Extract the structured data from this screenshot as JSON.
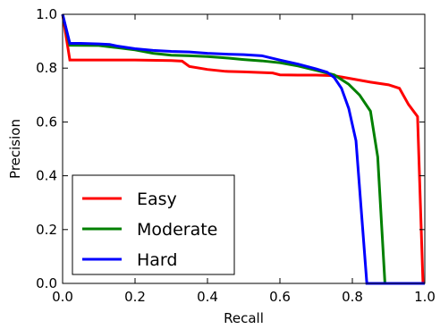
{
  "chart_data": {
    "type": "line",
    "title": "",
    "xlabel": "Recall",
    "ylabel": "Precision",
    "xlim": [
      0.0,
      1.0
    ],
    "ylim": [
      0.0,
      1.0
    ],
    "x_ticks": [
      "0.0",
      "0.2",
      "0.4",
      "0.6",
      "0.8",
      "1.0"
    ],
    "y_ticks": [
      "0.0",
      "0.2",
      "0.4",
      "0.6",
      "0.8",
      "1.0"
    ],
    "grid": false,
    "legend_position": "bottom-left",
    "series": [
      {
        "name": "Easy",
        "color": "#ff0000",
        "points": [
          [
            0.0,
            1.0
          ],
          [
            0.02,
            0.83
          ],
          [
            0.1,
            0.83
          ],
          [
            0.2,
            0.83
          ],
          [
            0.3,
            0.828
          ],
          [
            0.33,
            0.826
          ],
          [
            0.35,
            0.806
          ],
          [
            0.4,
            0.795
          ],
          [
            0.45,
            0.788
          ],
          [
            0.5,
            0.786
          ],
          [
            0.58,
            0.782
          ],
          [
            0.6,
            0.775
          ],
          [
            0.65,
            0.774
          ],
          [
            0.7,
            0.774
          ],
          [
            0.75,
            0.772
          ],
          [
            0.8,
            0.76
          ],
          [
            0.85,
            0.748
          ],
          [
            0.9,
            0.738
          ],
          [
            0.93,
            0.725
          ],
          [
            0.955,
            0.665
          ],
          [
            0.98,
            0.62
          ],
          [
            0.995,
            0.0
          ],
          [
            1.0,
            0.0
          ]
        ]
      },
      {
        "name": "Moderate",
        "color": "#008000",
        "points": [
          [
            0.0,
            1.0
          ],
          [
            0.02,
            0.885
          ],
          [
            0.1,
            0.884
          ],
          [
            0.15,
            0.876
          ],
          [
            0.2,
            0.868
          ],
          [
            0.25,
            0.855
          ],
          [
            0.3,
            0.848
          ],
          [
            0.35,
            0.846
          ],
          [
            0.4,
            0.843
          ],
          [
            0.45,
            0.838
          ],
          [
            0.5,
            0.832
          ],
          [
            0.55,
            0.827
          ],
          [
            0.6,
            0.82
          ],
          [
            0.65,
            0.808
          ],
          [
            0.7,
            0.792
          ],
          [
            0.75,
            0.775
          ],
          [
            0.79,
            0.74
          ],
          [
            0.82,
            0.7
          ],
          [
            0.85,
            0.64
          ],
          [
            0.87,
            0.47
          ],
          [
            0.89,
            0.0
          ],
          [
            1.0,
            0.0
          ]
        ]
      },
      {
        "name": "Hard",
        "color": "#0000ff",
        "points": [
          [
            0.0,
            1.0
          ],
          [
            0.02,
            0.892
          ],
          [
            0.05,
            0.892
          ],
          [
            0.1,
            0.89
          ],
          [
            0.13,
            0.888
          ],
          [
            0.15,
            0.882
          ],
          [
            0.2,
            0.872
          ],
          [
            0.25,
            0.866
          ],
          [
            0.3,
            0.862
          ],
          [
            0.35,
            0.86
          ],
          [
            0.4,
            0.855
          ],
          [
            0.45,
            0.852
          ],
          [
            0.5,
            0.85
          ],
          [
            0.55,
            0.846
          ],
          [
            0.6,
            0.83
          ],
          [
            0.65,
            0.815
          ],
          [
            0.7,
            0.797
          ],
          [
            0.73,
            0.785
          ],
          [
            0.75,
            0.765
          ],
          [
            0.77,
            0.725
          ],
          [
            0.79,
            0.65
          ],
          [
            0.81,
            0.53
          ],
          [
            0.84,
            0.0
          ],
          [
            1.0,
            0.0
          ]
        ]
      }
    ]
  }
}
